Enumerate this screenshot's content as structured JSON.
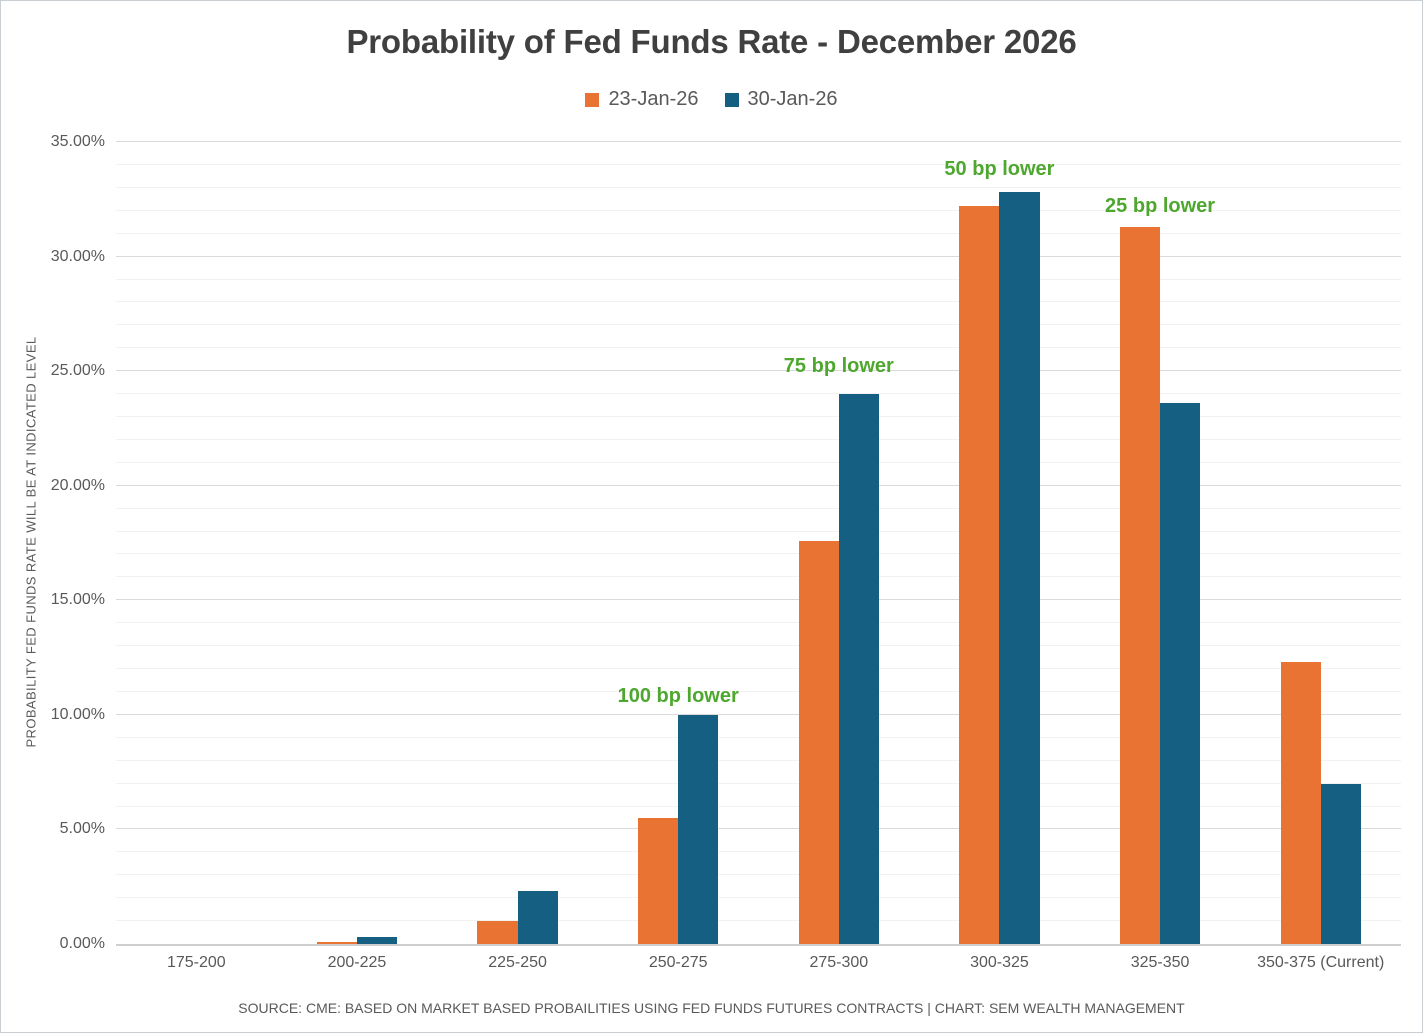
{
  "title": "Probability of Fed Funds Rate - December 2026",
  "legend": [
    {
      "label": "23-Jan-26",
      "color": "#e87332"
    },
    {
      "label": "30-Jan-26",
      "color": "#156082"
    }
  ],
  "y_axis": {
    "title": "PROBABILITY FED FUNDS RATE WILL BE AT INDICATED LEVEL",
    "tick_labels": [
      "0.00%",
      "5.00%",
      "10.00%",
      "15.00%",
      "20.00%",
      "25.00%",
      "30.00%",
      "35.00%"
    ]
  },
  "source": "SOURCE: CME: BASED ON MARKET BASED PROBAILITIES USING FED FUNDS FUTURES CONTRACTS | CHART: SEM WEALTH MANAGEMENT",
  "chart_data": {
    "type": "bar",
    "title": "Probability of Fed Funds Rate - December 2026",
    "ylabel": "PROBABILITY FED FUNDS RATE WILL BE AT INDICATED LEVEL",
    "xlabel": "",
    "ylim": [
      0,
      35
    ],
    "y_major_step": 5,
    "y_minor_step": 1,
    "grid": true,
    "legend_position": "top",
    "categories": [
      "175-200",
      "200-225",
      "225-250",
      "250-275",
      "275-300",
      "300-325",
      "325-350",
      "350-375 (Current)"
    ],
    "series": [
      {
        "name": "23-Jan-26",
        "color": "#e87332",
        "values": [
          0,
          0.1,
          1.0,
          5.5,
          17.6,
          32.2,
          31.3,
          12.3
        ]
      },
      {
        "name": "30-Jan-26",
        "color": "#156082",
        "values": [
          0,
          0.3,
          2.3,
          10.0,
          24.0,
          32.8,
          23.6,
          7.0
        ]
      }
    ],
    "annotations": [
      {
        "text": "100 bp lower",
        "category_index": 3,
        "y_percent": 10.3
      },
      {
        "text": "75 bp lower",
        "category_index": 4,
        "y_percent": 24.7
      },
      {
        "text": "50 bp lower",
        "category_index": 5,
        "y_percent": 33.3
      },
      {
        "text": "25 bp lower",
        "category_index": 6,
        "y_percent": 31.7
      }
    ]
  }
}
